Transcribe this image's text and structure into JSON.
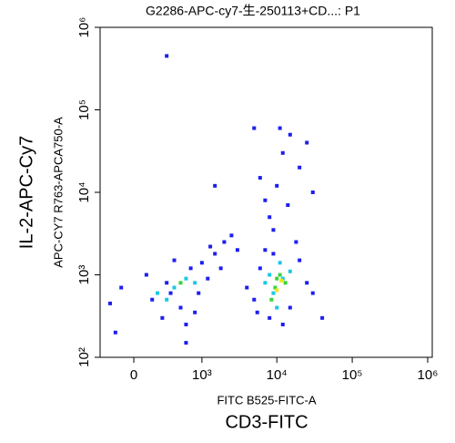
{
  "chart_data": {
    "type": "scatter",
    "title": "G2286-APC-cy7-生-250113+CD...: P1",
    "x_label": "FITC B525-FITC-A",
    "x_label_2": "CD3-FITC",
    "y_label": "APC-CY7 R763-APCA750-A",
    "y_label_2": "IL-2-APC-Cy7",
    "x_scale": "biexponential",
    "y_scale": "log",
    "xlim": [
      -310,
      1150000
    ],
    "ylim": [
      100,
      1000000
    ],
    "xticks": [
      0,
      {
        "value": 1000,
        "label": "10³"
      },
      {
        "value": 10000,
        "label": "10⁴"
      },
      {
        "value": 100000,
        "label": "10⁵"
      },
      {
        "value": 1000000,
        "label": "10⁶"
      }
    ],
    "yticks": [
      {
        "value": 100,
        "label": "10²"
      },
      {
        "value": 1000,
        "label": "10³"
      },
      {
        "value": 10000,
        "label": "10⁴"
      },
      {
        "value": 100000,
        "label": "10⁵"
      },
      {
        "value": 1000000,
        "label": "10⁶"
      }
    ],
    "series": [
      {
        "color": "#1e1ef0",
        "x": [
          150,
          300,
          500,
          700,
          250,
          900,
          -100,
          400,
          600,
          1200,
          100,
          800,
          -200,
          350,
          1000,
          1500,
          2000,
          2500,
          1800,
          3000,
          1300,
          5000,
          6000,
          8000,
          15000,
          20000,
          25000,
          4000,
          7000,
          12000,
          30000,
          9000,
          5500,
          18000,
          8000,
          10000,
          12000,
          15000,
          20000,
          7000,
          25000,
          9000,
          14000,
          6000,
          30000,
          11000,
          300,
          5000,
          -150,
          40000,
          1500,
          600
        ],
        "values": [
          500,
          800,
          400,
          1200,
          300,
          600,
          700,
          1500,
          250,
          900,
          1000,
          350,
          450,
          600,
          1400,
          1800,
          2500,
          3000,
          1200,
          2000,
          2200,
          500,
          1200,
          300,
          400,
          1500,
          800,
          700,
          2000,
          250,
          600,
          1800,
          350,
          2500,
          5000,
          12000,
          30000,
          50000,
          20000,
          8000,
          40000,
          3500,
          7000,
          15000,
          10000,
          60000,
          450000,
          60000,
          200,
          300,
          12000,
          150
        ]
      },
      {
        "color": "#19c8e6",
        "x": [
          400,
          600,
          300,
          800,
          9000,
          12000,
          7000,
          15000,
          10000,
          11000,
          200,
          8000
        ],
        "values": [
          700,
          900,
          500,
          800,
          600,
          900,
          800,
          1100,
          400,
          1400,
          600,
          1000
        ]
      },
      {
        "color": "#3cd23c",
        "x": [
          500,
          9500,
          11000,
          8500,
          13000,
          10000
        ],
        "values": [
          800,
          700,
          1000,
          500,
          800,
          900
        ]
      },
      {
        "color": "#f0e614",
        "x": [
          10000,
          11500
        ],
        "values": [
          650,
          850
        ]
      }
    ]
  }
}
